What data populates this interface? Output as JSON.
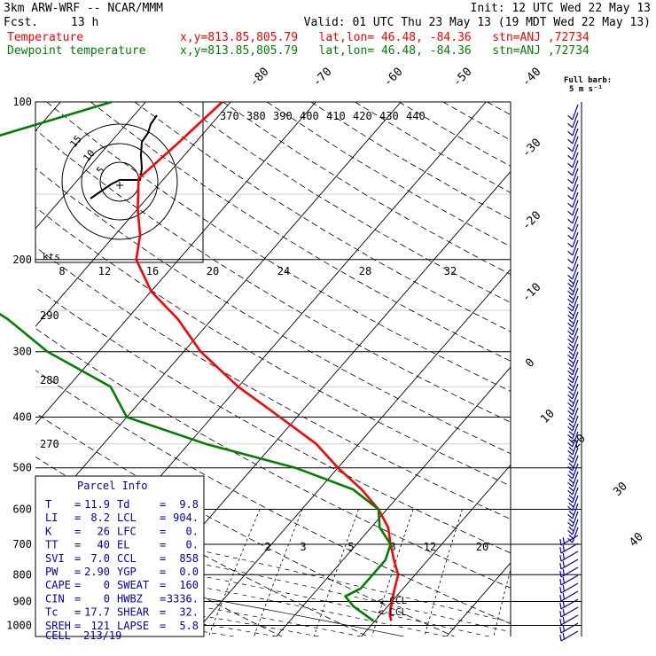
{
  "header": {
    "model": "3km ARW-WRF -- NCAR/MMM",
    "init": "Init: 12 UTC Wed 22 May 13",
    "fcst_label": "Fcst.",
    "fcst_value": "13 h",
    "valid": "Valid: 01 UTC Thu 23 May 13 (19 MDT Wed 22 May 13)",
    "temp_label": "Temperature",
    "dew_label": "Dewpoint temperature",
    "location": "x,y=813.85,805.79   lat,lon= 46.48, -84.36   stn=ANJ ,72734"
  },
  "colors": {
    "temperature": "#ff0000",
    "dewpoint": "#008000",
    "parcel_info": "#0000c0",
    "wind": "#0000c0"
  },
  "chart_data": {
    "type": "skew-t",
    "pressure_ticks": [
      "100",
      "200",
      "300",
      "400",
      "500",
      "600",
      "700",
      "800",
      "900",
      "1000"
    ],
    "temp_labels": [
      "-80",
      "-70",
      "-60",
      "-50",
      "-40",
      "-30",
      "-20",
      "-10",
      "0",
      "10",
      "20",
      "30",
      "40"
    ],
    "theta_labels": [
      "370",
      "380",
      "390",
      "400",
      "410",
      "420",
      "430",
      "440"
    ],
    "theta_low_labels": [
      "290",
      "280",
      "270"
    ],
    "hodograph_ticks": [
      "8",
      "12",
      "16",
      "20",
      "24",
      "28",
      "32"
    ],
    "hodograph_unit": "kts",
    "hodograph_rings": [
      "5",
      "10",
      "15"
    ],
    "mixing_ratio_labels": [
      "2",
      "3",
      "5",
      "8",
      "12",
      "20"
    ],
    "wind_barb_legend": "Full barb:",
    "wind_barb_units": "5 m s⁻¹",
    "ccl_label": "<-CCL",
    "lcl_label": "<-LCL",
    "temperature": [
      {
        "p": 100,
        "t": -61
      },
      {
        "p": 120,
        "t": -62
      },
      {
        "p": 140,
        "t": -63
      },
      {
        "p": 160,
        "t": -60
      },
      {
        "p": 180,
        "t": -57
      },
      {
        "p": 200,
        "t": -55
      },
      {
        "p": 230,
        "t": -50
      },
      {
        "p": 260,
        "t": -44
      },
      {
        "p": 300,
        "t": -38
      },
      {
        "p": 350,
        "t": -30
      },
      {
        "p": 400,
        "t": -22
      },
      {
        "p": 450,
        "t": -15
      },
      {
        "p": 500,
        "t": -10
      },
      {
        "p": 550,
        "t": -5
      },
      {
        "p": 600,
        "t": -1
      },
      {
        "p": 650,
        "t": 2
      },
      {
        "p": 700,
        "t": 4
      },
      {
        "p": 750,
        "t": 6
      },
      {
        "p": 800,
        "t": 8
      },
      {
        "p": 850,
        "t": 9
      },
      {
        "p": 900,
        "t": 10
      },
      {
        "p": 950,
        "t": 11
      },
      {
        "p": 980,
        "t": 11.9
      }
    ],
    "dewpoint": [
      {
        "p": 100,
        "t": -74
      },
      {
        "p": 120,
        "t": -86
      },
      {
        "p": 140,
        "t": -96
      },
      {
        "p": 160,
        "t": -88
      },
      {
        "p": 180,
        "t": -88
      },
      {
        "p": 200,
        "t": -82
      },
      {
        "p": 230,
        "t": -72
      },
      {
        "p": 260,
        "t": -64
      },
      {
        "p": 300,
        "t": -56
      },
      {
        "p": 350,
        "t": -45
      },
      {
        "p": 400,
        "t": -40
      },
      {
        "p": 450,
        "t": -28
      },
      {
        "p": 500,
        "t": -15
      },
      {
        "p": 550,
        "t": -6
      },
      {
        "p": 600,
        "t": -1
      },
      {
        "p": 650,
        "t": 1
      },
      {
        "p": 700,
        "t": 4
      },
      {
        "p": 750,
        "t": 5
      },
      {
        "p": 800,
        "t": 5
      },
      {
        "p": 850,
        "t": 5
      },
      {
        "p": 880,
        "t": 4
      },
      {
        "p": 920,
        "t": 6
      },
      {
        "p": 980,
        "t": 9.8
      }
    ]
  },
  "parcel_info": {
    "title": "Parcel Info",
    "rows": [
      {
        "l1": "T",
        "v1": "11.9",
        "l2": "Td",
        "v2": "9.8"
      },
      {
        "l1": "LI",
        "v1": "8.2",
        "l2": "LCL",
        "v2": "904."
      },
      {
        "l1": "K",
        "v1": "26",
        "l2": "LFC",
        "v2": "0."
      },
      {
        "l1": "TT",
        "v1": "40",
        "l2": "EL",
        "v2": "0."
      },
      {
        "l1": "SVI",
        "v1": "7.0",
        "l2": "CCL",
        "v2": "858"
      },
      {
        "l1": "PW",
        "v1": "2.90",
        "l2": "YGP",
        "v2": "0.0"
      },
      {
        "l1": "CAPE",
        "v1": "0",
        "l2": "SWEAT",
        "v2": "160"
      },
      {
        "l1": "CIN",
        "v1": "0",
        "l2": "HWBZ",
        "v2": "3336."
      },
      {
        "l1": "Tc",
        "v1": "17.7",
        "l2": "SHEAR",
        "v2": "32."
      },
      {
        "l1": "SREH",
        "v1": "121",
        "l2": "LAPSE",
        "v2": "5.8"
      }
    ],
    "cell_label": "CELL",
    "cell_value": "213/19"
  }
}
